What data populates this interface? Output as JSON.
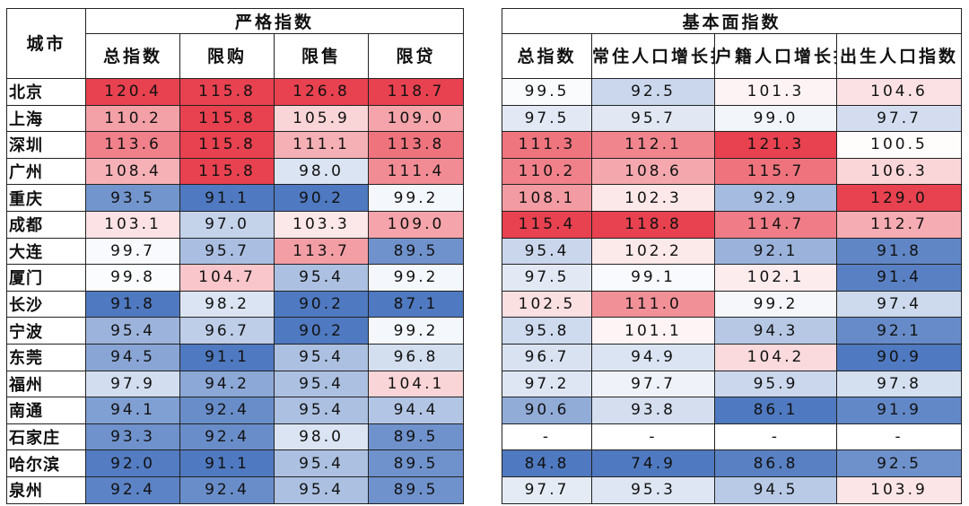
{
  "strict": {
    "group_title": "严格指数",
    "city_header": "城市",
    "columns": [
      "总指数",
      "限购",
      "限售",
      "限贷"
    ]
  },
  "fundamental": {
    "group_title": "基本面指数",
    "columns": [
      "总指数",
      "常住人口增长指数",
      "户籍人口增长指数",
      "出生人口指数"
    ]
  },
  "colors": {
    "high": "#e8414f",
    "mid": "#ffffff",
    "low": "#4f79c0"
  },
  "rows": [
    {
      "city": "北京",
      "strict": [
        "120.4",
        "115.8",
        "126.8",
        "118.7"
      ],
      "fund": [
        "99.5",
        "92.5",
        "101.3",
        "104.6"
      ]
    },
    {
      "city": "上海",
      "strict": [
        "110.2",
        "115.8",
        "105.9",
        "109.0"
      ],
      "fund": [
        "97.5",
        "95.7",
        "99.0",
        "97.7"
      ]
    },
    {
      "city": "深圳",
      "strict": [
        "113.6",
        "115.8",
        "111.1",
        "113.8"
      ],
      "fund": [
        "111.3",
        "112.1",
        "121.3",
        "100.5"
      ]
    },
    {
      "city": "广州",
      "strict": [
        "108.4",
        "115.8",
        "98.0",
        "111.4"
      ],
      "fund": [
        "110.2",
        "108.6",
        "115.7",
        "106.3"
      ]
    },
    {
      "city": "重庆",
      "strict": [
        "93.5",
        "91.1",
        "90.2",
        "99.2"
      ],
      "fund": [
        "108.1",
        "102.3",
        "92.9",
        "129.0"
      ]
    },
    {
      "city": "成都",
      "strict": [
        "103.1",
        "97.0",
        "103.3",
        "109.0"
      ],
      "fund": [
        "115.4",
        "118.8",
        "114.7",
        "112.7"
      ]
    },
    {
      "city": "大连",
      "strict": [
        "99.7",
        "95.7",
        "113.7",
        "89.5"
      ],
      "fund": [
        "95.4",
        "102.2",
        "92.1",
        "91.8"
      ]
    },
    {
      "city": "厦门",
      "strict": [
        "99.8",
        "104.7",
        "95.4",
        "99.2"
      ],
      "fund": [
        "97.5",
        "99.1",
        "102.1",
        "91.4"
      ]
    },
    {
      "city": "长沙",
      "strict": [
        "91.8",
        "98.2",
        "90.2",
        "87.1"
      ],
      "fund": [
        "102.5",
        "111.0",
        "99.2",
        "97.4"
      ]
    },
    {
      "city": "宁波",
      "strict": [
        "95.4",
        "96.7",
        "90.2",
        "99.2"
      ],
      "fund": [
        "95.8",
        "101.1",
        "94.3",
        "92.1"
      ]
    },
    {
      "city": "东莞",
      "strict": [
        "94.5",
        "91.1",
        "95.4",
        "96.8"
      ],
      "fund": [
        "96.7",
        "94.9",
        "104.2",
        "90.9"
      ]
    },
    {
      "city": "福州",
      "strict": [
        "97.9",
        "94.2",
        "95.4",
        "104.1"
      ],
      "fund": [
        "97.2",
        "97.7",
        "95.9",
        "97.8"
      ]
    },
    {
      "city": "南通",
      "strict": [
        "94.1",
        "92.4",
        "95.4",
        "94.4"
      ],
      "fund": [
        "90.6",
        "93.8",
        "86.1",
        "91.9"
      ]
    },
    {
      "city": "石家庄",
      "strict": [
        "93.3",
        "92.4",
        "98.0",
        "89.5"
      ],
      "fund": [
        "-",
        "-",
        "-",
        "-"
      ]
    },
    {
      "city": "哈尔滨",
      "strict": [
        "92.0",
        "91.1",
        "95.4",
        "89.5"
      ],
      "fund": [
        "84.8",
        "74.9",
        "86.8",
        "92.5"
      ]
    },
    {
      "city": "泉州",
      "strict": [
        "92.4",
        "92.4",
        "95.4",
        "89.5"
      ],
      "fund": [
        "97.7",
        "95.3",
        "94.5",
        "103.9"
      ]
    }
  ]
}
